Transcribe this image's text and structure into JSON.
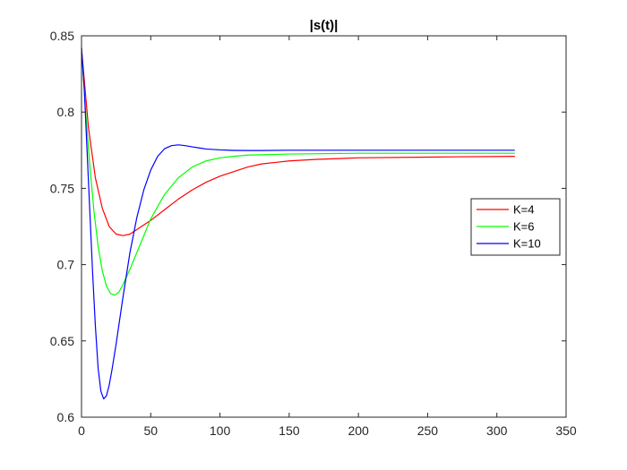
{
  "chart_data": {
    "type": "line",
    "title": "|s(t)|",
    "xlabel": "",
    "ylabel": "",
    "xlim": [
      0,
      350
    ],
    "ylim": [
      0.6,
      0.85
    ],
    "xticks": [
      0,
      50,
      100,
      150,
      200,
      250,
      300,
      350
    ],
    "yticks": [
      0.6,
      0.65,
      0.7,
      0.75,
      0.8,
      0.85
    ],
    "xtick_labels": [
      "0",
      "50",
      "100",
      "150",
      "200",
      "250",
      "300",
      "350"
    ],
    "ytick_labels": [
      "0.6",
      "0.65",
      "0.7",
      "0.75",
      "0.8",
      "0.85"
    ],
    "grid": false,
    "legend_position": "right",
    "series": [
      {
        "name": "K=4",
        "color": "#ff0000",
        "x": [
          0,
          5,
          10,
          15,
          20,
          25,
          30,
          35,
          40,
          50,
          60,
          70,
          80,
          90,
          100,
          110,
          120,
          130,
          140,
          150,
          170,
          200,
          250,
          313
        ],
        "y": [
          0.842,
          0.79,
          0.757,
          0.737,
          0.725,
          0.72,
          0.719,
          0.72,
          0.723,
          0.729,
          0.736,
          0.743,
          0.749,
          0.754,
          0.758,
          0.761,
          0.764,
          0.766,
          0.767,
          0.768,
          0.769,
          0.77,
          0.7705,
          0.771
        ]
      },
      {
        "name": "K=6",
        "color": "#00ff00",
        "x": [
          0,
          3,
          6,
          9,
          12,
          15,
          18,
          21,
          24,
          27,
          30,
          35,
          40,
          50,
          60,
          70,
          80,
          90,
          100,
          110,
          120,
          130,
          150,
          200,
          250,
          313
        ],
        "y": [
          0.842,
          0.8,
          0.765,
          0.735,
          0.712,
          0.696,
          0.686,
          0.681,
          0.68,
          0.682,
          0.687,
          0.697,
          0.708,
          0.73,
          0.746,
          0.757,
          0.764,
          0.768,
          0.77,
          0.771,
          0.7718,
          0.772,
          0.7725,
          0.773,
          0.773,
          0.773
        ]
      },
      {
        "name": "K=10",
        "color": "#0000ff",
        "x": [
          0,
          2,
          4,
          6,
          8,
          10,
          12,
          14,
          16,
          18,
          20,
          22,
          25,
          30,
          35,
          40,
          45,
          50,
          55,
          60,
          65,
          70,
          75,
          80,
          85,
          90,
          100,
          110,
          120,
          130,
          150,
          200,
          250,
          313
        ],
        "y": [
          0.842,
          0.815,
          0.775,
          0.735,
          0.695,
          0.66,
          0.632,
          0.617,
          0.612,
          0.614,
          0.621,
          0.631,
          0.648,
          0.679,
          0.708,
          0.731,
          0.749,
          0.762,
          0.771,
          0.776,
          0.778,
          0.7785,
          0.778,
          0.7772,
          0.7765,
          0.7758,
          0.7752,
          0.7749,
          0.7748,
          0.7748,
          0.775,
          0.775,
          0.775,
          0.775
        ]
      }
    ]
  }
}
